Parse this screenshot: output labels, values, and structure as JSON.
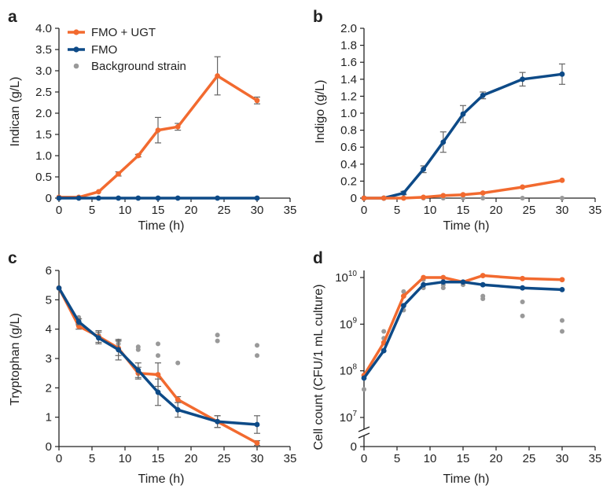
{
  "figure": {
    "colors": {
      "fmo_ugt": "#f26a2f",
      "fmo": "#0d4a87",
      "background": "#999999",
      "error_bar": "#666666"
    },
    "legend": {
      "items": [
        {
          "label": "FMO + UGT",
          "series": "fmo_ugt",
          "style": "line"
        },
        {
          "label": "FMO",
          "series": "fmo",
          "style": "line"
        },
        {
          "label": "Background strain",
          "series": "background",
          "style": "dot"
        }
      ]
    }
  },
  "chart_data": [
    {
      "panel_letter": "a",
      "type": "line",
      "xlabel": "Time (h)",
      "ylabel": "Indican (g/L)",
      "xlim": [
        0,
        35
      ],
      "ylim": [
        0,
        4.0
      ],
      "xticks": [
        "0",
        "5",
        "10",
        "15",
        "20",
        "25",
        "30",
        "35"
      ],
      "yticks": [
        "0",
        "0.5",
        "1.0",
        "1.5",
        "2.0",
        "2.5",
        "3.0",
        "3.5",
        "4.0"
      ],
      "ytick_values": [
        0,
        0.5,
        1.0,
        1.5,
        2.0,
        2.5,
        3.0,
        3.5,
        4.0
      ],
      "y_scale": "linear",
      "series": [
        {
          "name": "FMO + UGT",
          "color_key": "fmo_ugt",
          "style": "line",
          "x": [
            0,
            3,
            6,
            9,
            12,
            15,
            18,
            24,
            30
          ],
          "y": [
            0.02,
            0.02,
            0.15,
            0.57,
            1.0,
            1.6,
            1.68,
            2.88,
            2.3
          ],
          "err": [
            0,
            0,
            0,
            0.05,
            0.03,
            0.3,
            0.08,
            0.45,
            0.08
          ]
        },
        {
          "name": "FMO",
          "color_key": "fmo",
          "style": "line",
          "x": [
            0,
            3,
            6,
            9,
            12,
            15,
            18,
            24,
            30
          ],
          "y": [
            0,
            0,
            0,
            0,
            0,
            0,
            0,
            0,
            0
          ],
          "err": [
            0,
            0,
            0,
            0,
            0,
            0,
            0,
            0,
            0
          ]
        },
        {
          "name": "Background strain",
          "color_key": "background",
          "style": "dot",
          "x": [
            0,
            3,
            6,
            9,
            12,
            15,
            18,
            24,
            30
          ],
          "y": [
            0,
            0,
            0,
            0,
            0,
            0,
            0,
            0,
            0
          ]
        }
      ]
    },
    {
      "panel_letter": "b",
      "type": "line",
      "xlabel": "Time (h)",
      "ylabel": "Indigo (g/L)",
      "xlim": [
        0,
        35
      ],
      "ylim": [
        0,
        2.0
      ],
      "xticks": [
        "0",
        "5",
        "10",
        "15",
        "20",
        "25",
        "30",
        "35"
      ],
      "yticks": [
        "0",
        "0.2",
        "0.4",
        "0.6",
        "0.8",
        "1.0",
        "1.2",
        "1.4",
        "1.6",
        "1.8",
        "2.0"
      ],
      "ytick_values": [
        0,
        0.2,
        0.4,
        0.6,
        0.8,
        1.0,
        1.2,
        1.4,
        1.6,
        1.8,
        2.0
      ],
      "y_scale": "linear",
      "series": [
        {
          "name": "FMO",
          "color_key": "fmo",
          "style": "line",
          "x": [
            0,
            3,
            6,
            9,
            12,
            15,
            18,
            24,
            30
          ],
          "y": [
            0,
            0,
            0.06,
            0.34,
            0.66,
            0.99,
            1.21,
            1.4,
            1.46
          ],
          "err": [
            0,
            0,
            0.02,
            0.04,
            0.12,
            0.1,
            0.04,
            0.08,
            0.12
          ]
        },
        {
          "name": "FMO + UGT",
          "color_key": "fmo_ugt",
          "style": "line",
          "x": [
            0,
            3,
            6,
            9,
            12,
            15,
            18,
            24,
            30
          ],
          "y": [
            0,
            0,
            0,
            0.01,
            0.03,
            0.04,
            0.06,
            0.13,
            0.21
          ],
          "err": [
            0,
            0,
            0,
            0,
            0,
            0,
            0,
            0,
            0
          ]
        },
        {
          "name": "Background strain",
          "color_key": "background",
          "style": "dot",
          "x": [
            0,
            3,
            6,
            9,
            12,
            15,
            18,
            24,
            30
          ],
          "y": [
            0,
            0,
            0,
            0,
            0,
            0,
            0,
            0,
            0
          ]
        }
      ]
    },
    {
      "panel_letter": "c",
      "type": "line",
      "xlabel": "Time (h)",
      "ylabel": "Tryptophan (g/L)",
      "xlim": [
        0,
        35
      ],
      "ylim": [
        0,
        6
      ],
      "xticks": [
        "0",
        "5",
        "10",
        "15",
        "20",
        "25",
        "30",
        "35"
      ],
      "yticks": [
        "0",
        "1",
        "2",
        "3",
        "4",
        "5",
        "6"
      ],
      "ytick_values": [
        0,
        1,
        2,
        3,
        4,
        5,
        6
      ],
      "y_scale": "linear",
      "series": [
        {
          "name": "FMO + UGT",
          "color_key": "fmo_ugt",
          "style": "line",
          "x": [
            0,
            3,
            6,
            9,
            12,
            15,
            18,
            24,
            30
          ],
          "y": [
            5.4,
            4.1,
            3.75,
            3.35,
            2.5,
            2.45,
            1.6,
            0.85,
            0.12
          ],
          "err": [
            0,
            0.1,
            0.2,
            0.25,
            0.2,
            0.4,
            0.1,
            0.2,
            0.08
          ]
        },
        {
          "name": "FMO",
          "color_key": "fmo",
          "style": "line",
          "x": [
            0,
            3,
            6,
            9,
            12,
            15,
            18,
            24,
            30
          ],
          "y": [
            5.4,
            4.25,
            3.7,
            3.3,
            2.6,
            1.85,
            1.25,
            0.85,
            0.75
          ],
          "err": [
            0,
            0.1,
            0.2,
            0.35,
            0.25,
            0.45,
            0.25,
            0.2,
            0.3
          ]
        },
        {
          "name": "Background strain",
          "color_key": "background",
          "style": "dot",
          "x": [
            0,
            3,
            3,
            6,
            6,
            9,
            9,
            12,
            12,
            15,
            15,
            18,
            24,
            24,
            30,
            30
          ],
          "y": [
            5.4,
            4.4,
            4.3,
            3.8,
            3.7,
            3.6,
            3.5,
            3.4,
            3.3,
            3.5,
            3.1,
            2.85,
            3.8,
            3.6,
            3.45,
            3.1
          ]
        }
      ]
    },
    {
      "panel_letter": "d",
      "type": "line",
      "xlabel": "Time (h)",
      "ylabel": "Cell count (CFU/1 mL culture)",
      "xlim": [
        0,
        35
      ],
      "ylim": [
        1000000,
        30000000000
      ],
      "y_scale": "log",
      "y_axis_break": true,
      "xticks": [
        "0",
        "5",
        "10",
        "15",
        "20",
        "25",
        "30",
        "35"
      ],
      "yticks": [
        "0",
        "10^7",
        "10^8",
        "10^9",
        "10^10"
      ],
      "ytick_values": [
        0,
        10000000,
        100000000,
        1000000000,
        10000000000
      ],
      "series": [
        {
          "name": "FMO + UGT",
          "color_key": "fmo_ugt",
          "style": "line",
          "x": [
            0,
            3,
            6,
            9,
            12,
            15,
            18,
            24,
            30
          ],
          "y": [
            80000000,
            400000000,
            4000000000,
            10000000000,
            10000000000,
            8000000000,
            11000000000,
            9500000000,
            9000000000
          ]
        },
        {
          "name": "FMO",
          "color_key": "fmo",
          "style": "line",
          "x": [
            0,
            3,
            6,
            9,
            12,
            15,
            18,
            24,
            30
          ],
          "y": [
            70000000,
            270000000,
            2500000000,
            7000000000,
            8000000000,
            8000000000,
            7000000000,
            6000000000,
            5500000000
          ]
        },
        {
          "name": "Background strain",
          "color_key": "background",
          "style": "dot",
          "x": [
            0,
            3,
            3,
            6,
            6,
            9,
            9,
            12,
            12,
            15,
            15,
            18,
            18,
            24,
            24,
            30,
            30
          ],
          "y": [
            40000000,
            700000000,
            500000000,
            5000000000,
            2000000000,
            9000000000,
            6000000000,
            7000000000,
            6000000000,
            8000000000,
            7000000000,
            4000000000,
            3500000000,
            3000000000,
            1500000000,
            1200000000,
            700000000
          ]
        }
      ]
    }
  ]
}
